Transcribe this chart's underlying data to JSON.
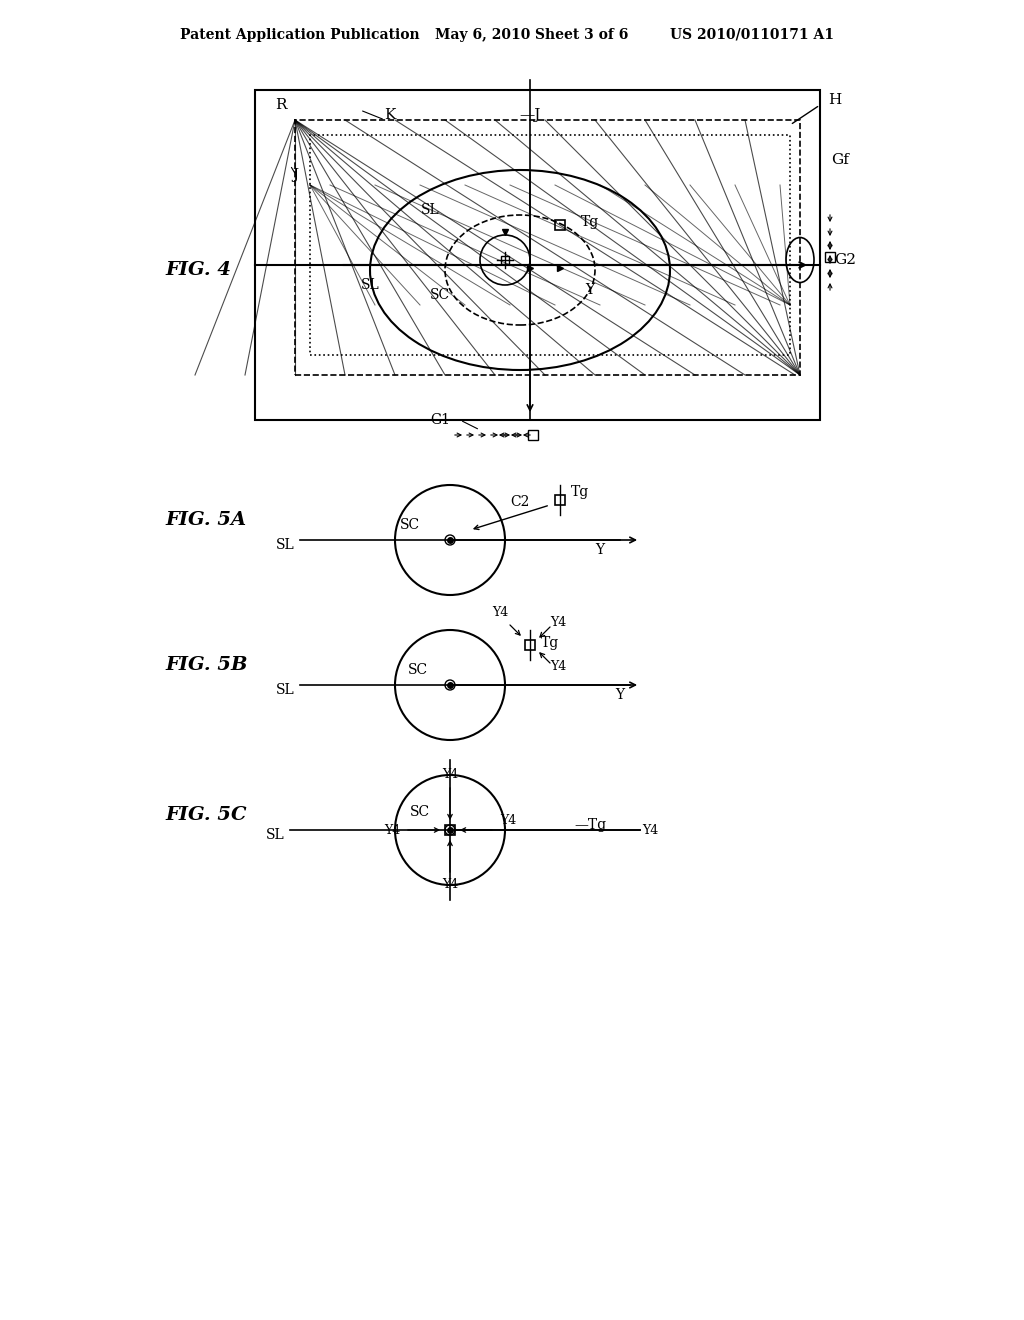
{
  "bg_color": "#ffffff",
  "header_text": "Patent Application Publication",
  "header_date": "May 6, 2010",
  "header_sheet": "Sheet 3 of 6",
  "header_patent": "US 2010/0110171 A1",
  "fig4_label": "FIG. 4",
  "fig5a_label": "FIG. 5A",
  "fig5b_label": "FIG. 5B",
  "fig5c_label": "FIG. 5C"
}
